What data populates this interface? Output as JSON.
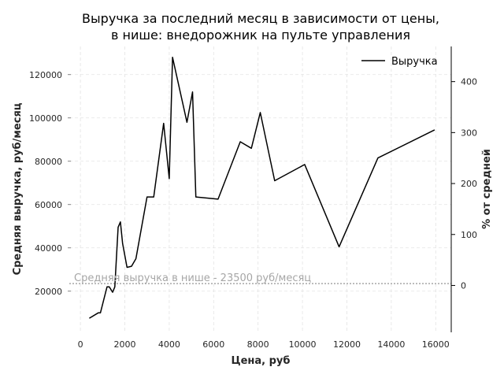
{
  "chart_data": {
    "type": "line",
    "title_line1": "Выручка за последний месяц в зависимости от цены,",
    "title_line2": "в нише: внедорожник на пульте управления",
    "xlabel": "Цена, руб",
    "ylabel": "Средняя выручка, руб/месяц",
    "y2label": "% от средней",
    "xlim": [
      -500,
      16700
    ],
    "ylim": [
      1000,
      133000
    ],
    "y2lim": [
      -92,
      469
    ],
    "xticks": [
      0,
      2000,
      4000,
      6000,
      8000,
      10000,
      12000,
      14000,
      16000
    ],
    "yticks": [
      20000,
      40000,
      60000,
      80000,
      100000,
      120000
    ],
    "y2ticks": [
      0,
      100,
      200,
      300,
      400
    ],
    "grid": true,
    "legend_position": "top-right",
    "series": [
      {
        "name": "Выручка",
        "color": "#000000",
        "x": [
          400,
          800,
          900,
          1200,
          1300,
          1450,
          1550,
          1700,
          1800,
          1900,
          2100,
          2300,
          2500,
          3000,
          3300,
          3750,
          4000,
          4150,
          4800,
          5050,
          5200,
          6200,
          7200,
          7700,
          8100,
          8750,
          10100,
          11650,
          13400,
          15950
        ],
        "values": [
          7500,
          10000,
          10000,
          22000,
          22000,
          19500,
          22000,
          49500,
          52000,
          42000,
          31000,
          31500,
          35000,
          63500,
          63500,
          97500,
          72000,
          128000,
          98000,
          112000,
          63500,
          62500,
          89000,
          86000,
          102500,
          71000,
          78500,
          40500,
          81500,
          94500
        ]
      }
    ],
    "annotation": {
      "text": "Средняя выручка в нише - 23500 руб/месяц",
      "value": 23500
    }
  }
}
